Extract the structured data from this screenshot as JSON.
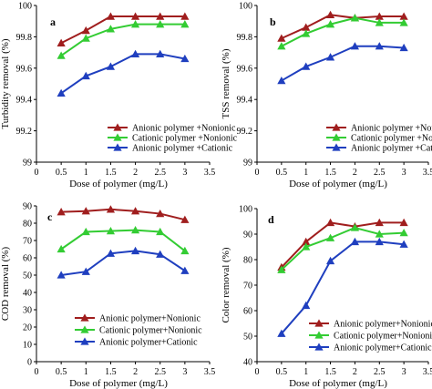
{
  "colors": {
    "anionic_nonionic": "#a01e1e",
    "cationic_nonionic": "#33cc33",
    "anionic_cationic": "#1f3fbf"
  },
  "chart_data": [
    {
      "type": "line",
      "panel": "a",
      "xlabel": "Dose of polymer (mg/L)",
      "ylabel": "Turbidity removal (%)",
      "xlim": [
        0,
        3.5
      ],
      "ylim": [
        99,
        100
      ],
      "xticks": [
        "0",
        "0.5",
        "1",
        "1.5",
        "2",
        "2.5",
        "3",
        "3.5"
      ],
      "yticks": [
        "99",
        "99.2",
        "99.4",
        "99.6",
        "99.8",
        "100"
      ],
      "legend_position": "bottom-right",
      "x": [
        0.5,
        1,
        1.5,
        2,
        2.5,
        3
      ],
      "series": [
        {
          "name": "Anionic polymer +Nonionic",
          "color": "#a01e1e",
          "values": [
            99.76,
            99.84,
            99.93,
            99.93,
            99.93,
            99.93
          ]
        },
        {
          "name": "Cationic polymer +Nonionic",
          "color": "#33cc33",
          "values": [
            99.68,
            99.79,
            99.85,
            99.88,
            99.88,
            99.88
          ]
        },
        {
          "name": "Anionic polymer +Cationic",
          "color": "#1f3fbf",
          "values": [
            99.44,
            99.55,
            99.61,
            99.69,
            99.69,
            99.66
          ]
        }
      ]
    },
    {
      "type": "line",
      "panel": "b",
      "xlabel": "Dose of polymer (mg/L)",
      "ylabel": "TSS removal (%)",
      "xlim": [
        0,
        3.5
      ],
      "ylim": [
        99,
        100
      ],
      "xticks": [
        "0",
        "0.5",
        "1",
        "1.5",
        "2",
        "2.5",
        "3",
        "3.5"
      ],
      "yticks": [
        "99",
        "99.2",
        "99.4",
        "99.6",
        "99.8",
        "100"
      ],
      "legend_position": "bottom-right",
      "x": [
        0.5,
        1,
        1.5,
        2,
        2.5,
        3
      ],
      "series": [
        {
          "name": "Anionic polymer +Nonionic",
          "color": "#a01e1e",
          "values": [
            99.79,
            99.86,
            99.94,
            99.92,
            99.93,
            99.93
          ]
        },
        {
          "name": "Cationic polymer +Nonionic",
          "color": "#33cc33",
          "values": [
            99.74,
            99.82,
            99.88,
            99.92,
            99.89,
            99.89
          ]
        },
        {
          "name": "Anionic polymer +Cationic",
          "color": "#1f3fbf",
          "values": [
            99.52,
            99.61,
            99.67,
            99.74,
            99.74,
            99.73
          ]
        }
      ]
    },
    {
      "type": "line",
      "panel": "c",
      "xlabel": "Dose of polymer (mg/L)",
      "ylabel": "COD removal (%)",
      "xlim": [
        0,
        3.5
      ],
      "ylim": [
        0,
        90
      ],
      "xticks": [
        "0",
        "0.5",
        "1",
        "1.5",
        "2",
        "2.5",
        "3",
        "3.5"
      ],
      "yticks": [
        "0",
        "10",
        "20",
        "30",
        "40",
        "50",
        "60",
        "70",
        "80",
        "90"
      ],
      "legend_position": "bottom-center",
      "x": [
        0.5,
        1,
        1.5,
        2,
        2.5,
        3
      ],
      "series": [
        {
          "name": "Anionic polymer+Nonionic",
          "color": "#a01e1e",
          "values": [
            86.5,
            87.0,
            88.0,
            87.0,
            85.5,
            82.0
          ]
        },
        {
          "name": "Cationic polymer+Nonionic",
          "color": "#33cc33",
          "values": [
            65.0,
            75.0,
            75.5,
            76.0,
            75.0,
            64.0
          ]
        },
        {
          "name": "Anionic polymer+Cationic",
          "color": "#1f3fbf",
          "values": [
            50.0,
            52.0,
            62.5,
            64.0,
            62.0,
            52.5
          ]
        }
      ]
    },
    {
      "type": "line",
      "panel": "d",
      "xlabel": "Dose of polymer (mg/L)",
      "ylabel": "Color removal (%)",
      "xlim": [
        0,
        3.5
      ],
      "ylim": [
        40,
        100
      ],
      "xticks": [
        "0",
        "0.5",
        "1",
        "1.5",
        "2",
        "2.5",
        "3",
        "3.5"
      ],
      "yticks": [
        "40",
        "50",
        "60",
        "70",
        "80",
        "90",
        "100"
      ],
      "legend_position": "bottom-right",
      "x": [
        0.5,
        1,
        1.5,
        2,
        2.5,
        3
      ],
      "series": [
        {
          "name": "Anionic polymer+Nonionic",
          "color": "#a01e1e",
          "values": [
            77.0,
            87.0,
            94.5,
            93.0,
            94.5,
            94.5
          ]
        },
        {
          "name": "Cationic polymer+Nonionic",
          "color": "#33cc33",
          "values": [
            76.0,
            85.0,
            88.5,
            92.5,
            90.0,
            90.5
          ]
        },
        {
          "name": "Anionic polymer+Cationic",
          "color": "#1f3fbf",
          "values": [
            51.0,
            62.0,
            79.5,
            87.0,
            87.0,
            86.0
          ]
        }
      ]
    }
  ]
}
